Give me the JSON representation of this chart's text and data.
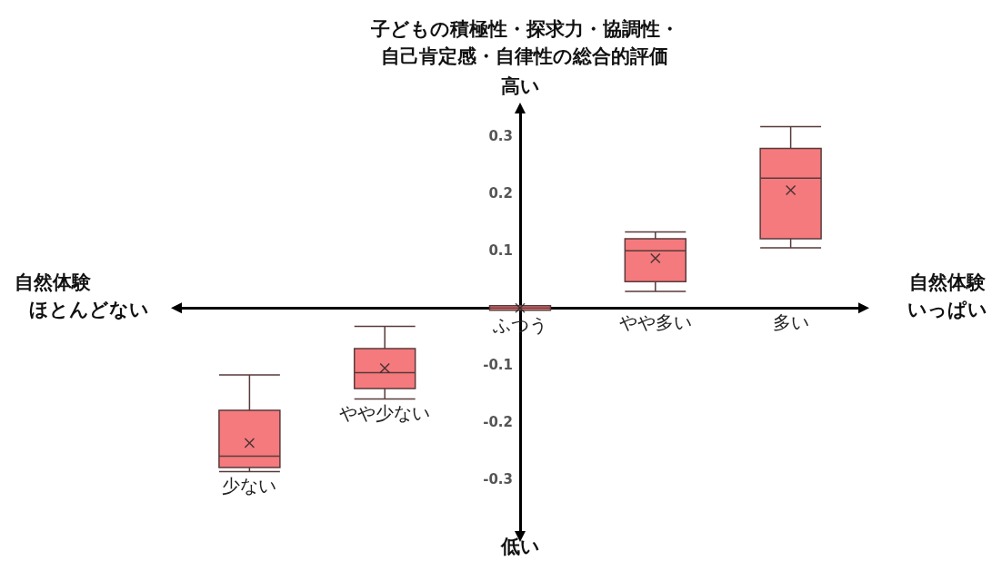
{
  "chart_data": {
    "type": "box",
    "title": "子どもの積極性・探求力・協調性・自己肯定感・自律性の総合的評価",
    "categories": [
      "少ない",
      "やや少ない",
      "ふつう",
      "やや多い",
      "多い"
    ],
    "series": [
      {
        "color": "#f47a7e",
        "boxes": [
          {
            "low": -0.286,
            "q1": -0.279,
            "median": -0.259,
            "q3": -0.179,
            "high": -0.117,
            "mean": -0.236
          },
          {
            "low": -0.159,
            "q1": -0.141,
            "median": -0.113,
            "q3": -0.071,
            "high": -0.032,
            "mean": -0.105
          },
          {
            "low": -0.004,
            "q1": -0.004,
            "median": 0,
            "q3": 0.004,
            "high": 0.004,
            "mean": 0
          },
          {
            "low": 0.029,
            "q1": 0.046,
            "median": 0.1,
            "q3": 0.121,
            "high": 0.133,
            "mean": 0.087
          },
          {
            "low": 0.105,
            "q1": 0.121,
            "median": 0.227,
            "q3": 0.279,
            "high": 0.317,
            "mean": 0.206
          }
        ]
      }
    ],
    "ylim": [
      -0.39,
      0.34
    ],
    "yticks": [
      -0.3,
      -0.2,
      -0.1,
      0.1,
      0.2,
      0.3
    ],
    "grid": false,
    "annotations": [
      "高い",
      "低い",
      "自然体験",
      "ほとんどない",
      "自然体験",
      "いっぱい"
    ]
  }
}
